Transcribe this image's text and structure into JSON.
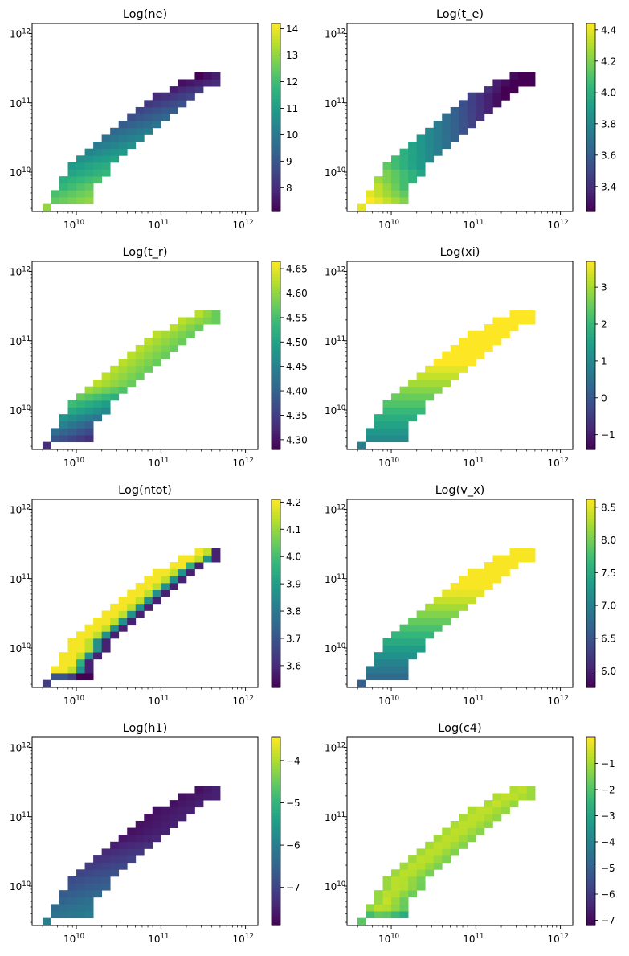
{
  "chart_data": [
    {
      "type": "heatmap",
      "title": "Log(ne)",
      "xscale": "log",
      "yscale": "log",
      "xlim": [
        3000000000.0,
        1400000000000.0
      ],
      "ylim": [
        2700000000.0,
        1400000000000.0
      ],
      "x_ticks": [
        {
          "base": "10",
          "exp": "10"
        },
        {
          "base": "10",
          "exp": "11"
        },
        {
          "base": "10",
          "exp": "12"
        }
      ],
      "y_ticks": [
        {
          "base": "10",
          "exp": "10"
        },
        {
          "base": "10",
          "exp": "11"
        },
        {
          "base": "10",
          "exp": "12"
        }
      ],
      "colorbar": {
        "min": 7.1,
        "max": 14.2,
        "ticks": [
          "8",
          "9",
          "10",
          "11",
          "12",
          "13",
          "14"
        ],
        "tick_values": [
          8,
          9,
          10,
          11,
          12,
          13,
          14
        ]
      },
      "field": "ne"
    },
    {
      "type": "heatmap",
      "title": "Log(t_e)",
      "xscale": "log",
      "yscale": "log",
      "xlim": [
        3000000000.0,
        1400000000000.0
      ],
      "ylim": [
        2700000000.0,
        1400000000000.0
      ],
      "x_ticks": [
        {
          "base": "10",
          "exp": "10"
        },
        {
          "base": "10",
          "exp": "11"
        },
        {
          "base": "10",
          "exp": "12"
        }
      ],
      "y_ticks": [
        {
          "base": "10",
          "exp": "10"
        },
        {
          "base": "10",
          "exp": "11"
        },
        {
          "base": "10",
          "exp": "12"
        }
      ],
      "colorbar": {
        "min": 3.24,
        "max": 4.44,
        "ticks": [
          "3.4",
          "3.6",
          "3.8",
          "4.0",
          "4.2",
          "4.4"
        ],
        "tick_values": [
          3.4,
          3.6,
          3.8,
          4.0,
          4.2,
          4.4
        ]
      },
      "field": "te"
    },
    {
      "type": "heatmap",
      "title": "Log(t_r)",
      "xscale": "log",
      "yscale": "log",
      "xlim": [
        3000000000.0,
        1400000000000.0
      ],
      "ylim": [
        2700000000.0,
        1400000000000.0
      ],
      "x_ticks": [
        {
          "base": "10",
          "exp": "10"
        },
        {
          "base": "10",
          "exp": "11"
        },
        {
          "base": "10",
          "exp": "12"
        }
      ],
      "y_ticks": [
        {
          "base": "10",
          "exp": "10"
        },
        {
          "base": "10",
          "exp": "11"
        },
        {
          "base": "10",
          "exp": "12"
        }
      ],
      "colorbar": {
        "min": 4.28,
        "max": 4.665,
        "ticks": [
          "4.30",
          "4.35",
          "4.40",
          "4.45",
          "4.50",
          "4.55",
          "4.60",
          "4.65"
        ],
        "tick_values": [
          4.3,
          4.35,
          4.4,
          4.45,
          4.5,
          4.55,
          4.6,
          4.65
        ]
      },
      "field": "tr"
    },
    {
      "type": "heatmap",
      "title": "Log(xi)",
      "xscale": "log",
      "yscale": "log",
      "xlim": [
        3000000000.0,
        1400000000000.0
      ],
      "ylim": [
        2700000000.0,
        1400000000000.0
      ],
      "x_ticks": [
        {
          "base": "10",
          "exp": "10"
        },
        {
          "base": "10",
          "exp": "11"
        },
        {
          "base": "10",
          "exp": "12"
        }
      ],
      "y_ticks": [
        {
          "base": "10",
          "exp": "10"
        },
        {
          "base": "10",
          "exp": "11"
        },
        {
          "base": "10",
          "exp": "12"
        }
      ],
      "colorbar": {
        "min": -1.4,
        "max": 3.7,
        "ticks": [
          "−1",
          "0",
          "1",
          "2",
          "3"
        ],
        "tick_values": [
          -1,
          0,
          1,
          2,
          3
        ]
      },
      "field": "xi"
    },
    {
      "type": "heatmap",
      "title": "Log(ntot)",
      "xscale": "log",
      "yscale": "log",
      "xlim": [
        3000000000.0,
        1400000000000.0
      ],
      "ylim": [
        2700000000.0,
        1400000000000.0
      ],
      "x_ticks": [
        {
          "base": "10",
          "exp": "10"
        },
        {
          "base": "10",
          "exp": "11"
        },
        {
          "base": "10",
          "exp": "12"
        }
      ],
      "y_ticks": [
        {
          "base": "10",
          "exp": "10"
        },
        {
          "base": "10",
          "exp": "11"
        },
        {
          "base": "10",
          "exp": "12"
        }
      ],
      "colorbar": {
        "min": 3.52,
        "max": 4.21,
        "ticks": [
          "3.6",
          "3.7",
          "3.8",
          "3.9",
          "4.0",
          "4.1",
          "4.2"
        ],
        "tick_values": [
          3.6,
          3.7,
          3.8,
          3.9,
          4.0,
          4.1,
          4.2
        ]
      },
      "field": "ntot"
    },
    {
      "type": "heatmap",
      "title": "Log(v_x)",
      "xscale": "log",
      "yscale": "log",
      "xlim": [
        3000000000.0,
        1400000000000.0
      ],
      "ylim": [
        2700000000.0,
        1400000000000.0
      ],
      "x_ticks": [
        {
          "base": "10",
          "exp": "10"
        },
        {
          "base": "10",
          "exp": "11"
        },
        {
          "base": "10",
          "exp": "12"
        }
      ],
      "y_ticks": [
        {
          "base": "10",
          "exp": "10"
        },
        {
          "base": "10",
          "exp": "11"
        },
        {
          "base": "10",
          "exp": "12"
        }
      ],
      "colorbar": {
        "min": 5.75,
        "max": 8.62,
        "ticks": [
          "6.0",
          "6.5",
          "7.0",
          "7.5",
          "8.0",
          "8.5"
        ],
        "tick_values": [
          6.0,
          6.5,
          7.0,
          7.5,
          8.0,
          8.5
        ]
      },
      "field": "vx"
    },
    {
      "type": "heatmap",
      "title": "Log(h1)",
      "xscale": "log",
      "yscale": "log",
      "xlim": [
        3000000000.0,
        1400000000000.0
      ],
      "ylim": [
        2700000000.0,
        1400000000000.0
      ],
      "x_ticks": [
        {
          "base": "10",
          "exp": "10"
        },
        {
          "base": "10",
          "exp": "11"
        },
        {
          "base": "10",
          "exp": "12"
        }
      ],
      "y_ticks": [
        {
          "base": "10",
          "exp": "10"
        },
        {
          "base": "10",
          "exp": "11"
        },
        {
          "base": "10",
          "exp": "12"
        }
      ],
      "colorbar": {
        "min": -7.9,
        "max": -3.45,
        "ticks": [
          "−7",
          "−6",
          "−5",
          "−4"
        ],
        "tick_values": [
          -7,
          -6,
          -5,
          -4
        ]
      },
      "field": "h1"
    },
    {
      "type": "heatmap",
      "title": "Log(c4)",
      "xscale": "log",
      "yscale": "log",
      "xlim": [
        3000000000.0,
        1400000000000.0
      ],
      "ylim": [
        2700000000.0,
        1400000000000.0
      ],
      "x_ticks": [
        {
          "base": "10",
          "exp": "10"
        },
        {
          "base": "10",
          "exp": "11"
        },
        {
          "base": "10",
          "exp": "12"
        }
      ],
      "y_ticks": [
        {
          "base": "10",
          "exp": "10"
        },
        {
          "base": "10",
          "exp": "11"
        },
        {
          "base": "10",
          "exp": "12"
        }
      ],
      "colorbar": {
        "min": -7.2,
        "max": 0.0,
        "ticks": [
          "−7",
          "−6",
          "−5",
          "−4",
          "−3",
          "−2",
          "−1"
        ],
        "tick_values": [
          -7,
          -6,
          -5,
          -4,
          -3,
          -2,
          -1
        ]
      },
      "field": "c4"
    }
  ],
  "grid": {
    "x_log_edges_min": 9.6,
    "x_bin_log_width": 0.1,
    "y_log_edges_min": 9.44,
    "y_bin_log_width": 0.1,
    "rows": [
      {
        "j": 0,
        "i0": 0,
        "i1": 1
      },
      {
        "j": 1,
        "i0": 1,
        "i1": 6
      },
      {
        "j": 2,
        "i0": 1,
        "i1": 6
      },
      {
        "j": 3,
        "i0": 2,
        "i1": 6
      },
      {
        "j": 4,
        "i0": 2,
        "i1": 7
      },
      {
        "j": 5,
        "i0": 3,
        "i1": 8
      },
      {
        "j": 6,
        "i0": 3,
        "i1": 8
      },
      {
        "j": 7,
        "i0": 4,
        "i1": 9
      },
      {
        "j": 8,
        "i0": 5,
        "i1": 10
      },
      {
        "j": 9,
        "i0": 6,
        "i1": 11
      },
      {
        "j": 10,
        "i0": 7,
        "i1": 12
      },
      {
        "j": 11,
        "i0": 8,
        "i1": 13
      },
      {
        "j": 12,
        "i0": 9,
        "i1": 14
      },
      {
        "j": 13,
        "i0": 10,
        "i1": 15
      },
      {
        "j": 14,
        "i0": 11,
        "i1": 16
      },
      {
        "j": 15,
        "i0": 12,
        "i1": 17
      },
      {
        "j": 16,
        "i0": 13,
        "i1": 18
      },
      {
        "j": 17,
        "i0": 15,
        "i1": 19
      },
      {
        "j": 18,
        "i0": 16,
        "i1": 21
      },
      {
        "j": 19,
        "i0": 18,
        "i1": 21
      }
    ]
  },
  "colormap": {
    "name": "viridis",
    "stops": [
      "#440154",
      "#482878",
      "#3e4989",
      "#31688e",
      "#26828e",
      "#1f9e89",
      "#35b779",
      "#6ece58",
      "#b5de2b",
      "#fde725"
    ]
  }
}
